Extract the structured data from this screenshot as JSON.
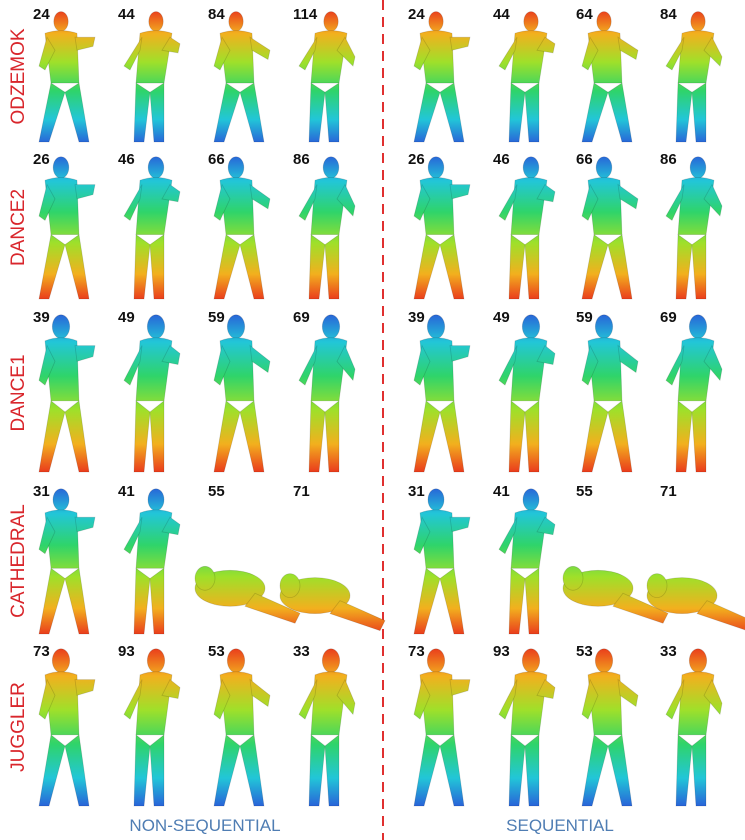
{
  "rows": [
    {
      "label": "ODZEMOK",
      "non_sequential": [
        24,
        44,
        84,
        114
      ],
      "sequential": [
        24,
        44,
        64,
        84
      ]
    },
    {
      "label": "DANCE2",
      "non_sequential": [
        26,
        46,
        66,
        86
      ],
      "sequential": [
        26,
        46,
        66,
        86
      ]
    },
    {
      "label": "DANCE1",
      "non_sequential": [
        39,
        49,
        59,
        69
      ],
      "sequential": [
        39,
        49,
        59,
        69
      ]
    },
    {
      "label": "CATHEDRAL",
      "non_sequential": [
        31,
        41,
        55,
        71
      ],
      "sequential": [
        31,
        41,
        55,
        71
      ]
    },
    {
      "label": "JUGGLER",
      "non_sequential": [
        73,
        93,
        53,
        33
      ],
      "sequential": [
        73,
        93,
        53,
        33
      ]
    }
  ],
  "footer": {
    "left": "NON-SEQUENTIAL",
    "right": "SEQUENTIAL"
  }
}
